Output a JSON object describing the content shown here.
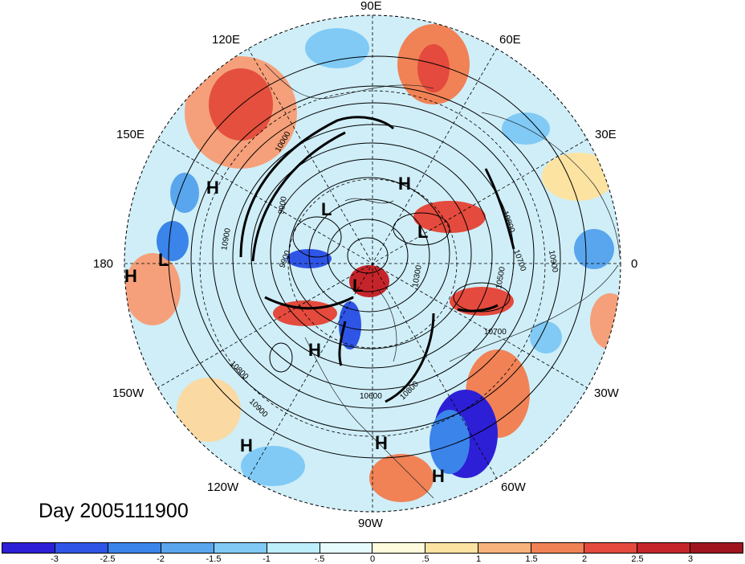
{
  "map": {
    "title": "Day 2005111900",
    "projection": "north polar stereographic",
    "longitude_labels": {
      "lon_90e": "90E",
      "lon_60e": "60E",
      "lon_120e": "120E",
      "lon_150e": "150E",
      "lon_30e": "30E",
      "lon_180": "180",
      "lon_0": "0",
      "lon_150w": "150W",
      "lon_30w": "30W",
      "lon_120w": "120W",
      "lon_60w": "60W",
      "lon_90w": "90W"
    },
    "pressure_centers": {
      "h_150e": "H",
      "h_europe": "H",
      "h_180": "H",
      "h_pacific_nw": "H",
      "h_pacific_sw": "H",
      "h_gulf": "H",
      "h_atlantic": "H",
      "l_siberia": "L",
      "l_180": "L",
      "l_urals": "L",
      "l_pole": "L"
    },
    "contour_labels": {
      "c10800_a": "10800",
      "c10800_b": "10800",
      "c10700_a": "10700",
      "c10700_b": "10700",
      "c10900_a": "10900",
      "c10900_b": "10900",
      "c10900_c": "10900",
      "c10500": "10500",
      "c10600": "10600",
      "c10300": "10300",
      "c9900_a": "9900",
      "c9900_b": "9900",
      "c10000": "10000",
      "c10800_c": "10800"
    },
    "contour_color": "#000000"
  },
  "colorbar": {
    "ticks": [
      "-3",
      "-2.5",
      "-2",
      "-1.5",
      "-1",
      "-.5",
      "0",
      ".5",
      "1",
      "1.5",
      "2",
      "2.5",
      "3"
    ],
    "colors": [
      "#2d1fd6",
      "#2f55e6",
      "#3a84ea",
      "#5aa6ee",
      "#80caf5",
      "#bdeffb",
      "#e6fbfd",
      "#fffbdc",
      "#fde3a2",
      "#f8b27b",
      "#f08256",
      "#e44a3d",
      "#c5252a",
      "#a0141f"
    ]
  }
}
